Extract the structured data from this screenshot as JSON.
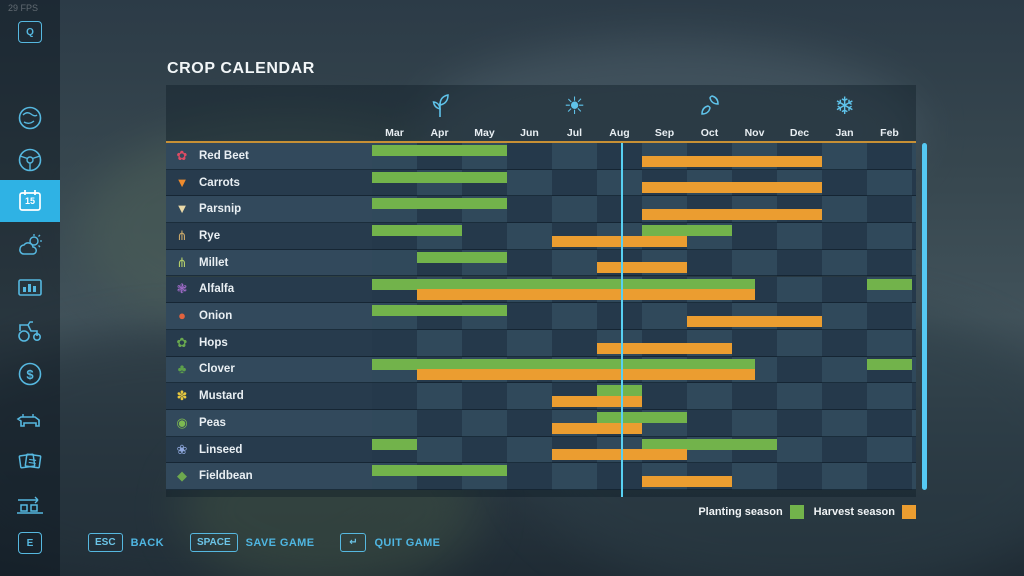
{
  "hud": {
    "fps": "29 FPS"
  },
  "page": {
    "title": "CROP CALENDAR"
  },
  "sidebar": {
    "items": [
      {
        "name": "keycap-q",
        "key_label": "Q",
        "active": false
      },
      {
        "name": "map",
        "active": false
      },
      {
        "name": "vehicles",
        "active": false
      },
      {
        "name": "calendar",
        "key_label": "15",
        "active": true
      },
      {
        "name": "weather",
        "active": false
      },
      {
        "name": "statistics",
        "active": false
      },
      {
        "name": "garage",
        "active": false
      },
      {
        "name": "finances",
        "active": false
      },
      {
        "name": "animals",
        "active": false
      },
      {
        "name": "contracts",
        "active": false
      },
      {
        "name": "production-chains",
        "active": false
      },
      {
        "name": "keycap-e",
        "key_label": "E",
        "active": false
      }
    ]
  },
  "calendar": {
    "months": [
      "Mar",
      "Apr",
      "May",
      "Jun",
      "Jul",
      "Aug",
      "Sep",
      "Oct",
      "Nov",
      "Dec",
      "Jan",
      "Feb"
    ],
    "seasons": [
      {
        "name": "spring",
        "icon": "sprout-icon",
        "center_month_index": 1.5
      },
      {
        "name": "summer",
        "icon": "sun-icon",
        "center_month_index": 4.5,
        "glyph": "☀"
      },
      {
        "name": "autumn",
        "icon": "falling-leaf-icon",
        "center_month_index": 7.5
      },
      {
        "name": "winter",
        "icon": "snowflake-icon",
        "center_month_index": 10.5,
        "glyph": "❄"
      }
    ],
    "current_day_month_offset": 5.53,
    "colors": {
      "plant": "#72b34b",
      "harvest": "#eb9d30"
    },
    "crops": [
      {
        "name": "Red Beet",
        "icon_glyph": "✿",
        "icon_color": "#dd4b64",
        "plant": [
          [
            0,
            3
          ]
        ],
        "harvest": [
          [
            6,
            10
          ]
        ]
      },
      {
        "name": "Carrots",
        "icon_glyph": "▼",
        "icon_color": "#ef8b2d",
        "plant": [
          [
            0,
            3
          ]
        ],
        "harvest": [
          [
            6,
            10
          ]
        ]
      },
      {
        "name": "Parsnip",
        "icon_glyph": "▼",
        "icon_color": "#ead9a8",
        "plant": [
          [
            0,
            3
          ]
        ],
        "harvest": [
          [
            6,
            10
          ]
        ]
      },
      {
        "name": "Rye",
        "icon_glyph": "⋔",
        "icon_color": "#c9a86a",
        "plant": [
          [
            0,
            2
          ],
          [
            6,
            8
          ]
        ],
        "harvest": [
          [
            4,
            7
          ]
        ]
      },
      {
        "name": "Millet",
        "icon_glyph": "⋔",
        "icon_color": "#b5cf6b",
        "plant": [
          [
            1,
            3
          ]
        ],
        "harvest": [
          [
            5,
            7
          ]
        ]
      },
      {
        "name": "Alfalfa",
        "icon_glyph": "❃",
        "icon_color": "#a06bc9",
        "plant": [
          [
            0,
            8.5
          ],
          [
            11,
            12
          ]
        ],
        "harvest": [
          [
            1,
            8.5
          ]
        ]
      },
      {
        "name": "Onion",
        "icon_glyph": "●",
        "icon_color": "#e2633e",
        "plant": [
          [
            0,
            3
          ]
        ],
        "harvest": [
          [
            7,
            10
          ]
        ]
      },
      {
        "name": "Hops",
        "icon_glyph": "✿",
        "icon_color": "#69a84f",
        "plant": [],
        "harvest": [
          [
            5,
            8
          ]
        ]
      },
      {
        "name": "Clover",
        "icon_glyph": "♣",
        "icon_color": "#5da04b",
        "plant": [
          [
            0,
            8.5
          ],
          [
            11,
            12
          ]
        ],
        "harvest": [
          [
            1,
            8.5
          ]
        ]
      },
      {
        "name": "Mustard",
        "icon_glyph": "✽",
        "icon_color": "#e8c83e",
        "plant": [
          [
            5,
            6
          ]
        ],
        "harvest": [
          [
            4,
            6
          ]
        ]
      },
      {
        "name": "Peas",
        "icon_glyph": "◉",
        "icon_color": "#7cb851",
        "plant": [
          [
            5,
            7
          ]
        ],
        "harvest": [
          [
            4,
            6
          ]
        ]
      },
      {
        "name": "Linseed",
        "icon_glyph": "❀",
        "icon_color": "#8fa8dd",
        "plant": [
          [
            0,
            1
          ],
          [
            6,
            9
          ]
        ],
        "harvest": [
          [
            4,
            7
          ]
        ]
      },
      {
        "name": "Fieldbean",
        "icon_glyph": "◆",
        "icon_color": "#6da84e",
        "plant": [
          [
            0,
            3
          ]
        ],
        "harvest": [
          [
            6,
            8
          ]
        ]
      }
    ],
    "legend": [
      {
        "label": "Planting season",
        "color": "#72b34b"
      },
      {
        "label": "Harvest season",
        "color": "#eb9d30"
      }
    ]
  },
  "footer": {
    "buttons": [
      {
        "key": "ESC",
        "label": "BACK"
      },
      {
        "key": "SPACE",
        "label": "SAVE GAME"
      },
      {
        "key": "↵",
        "label": "QUIT GAME"
      }
    ]
  }
}
